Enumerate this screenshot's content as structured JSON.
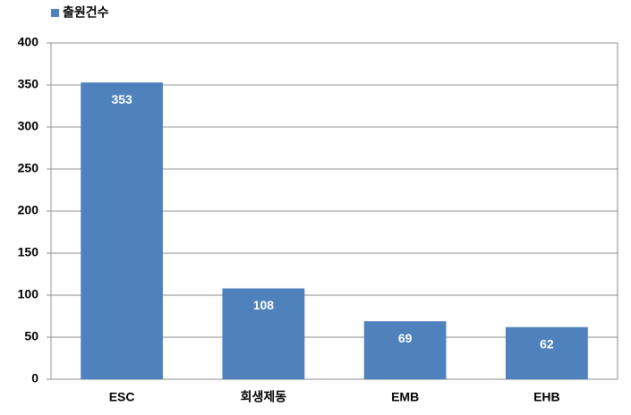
{
  "chart_data": {
    "type": "bar",
    "categories": [
      "ESC",
      "회생제동",
      "EMB",
      "EHB"
    ],
    "series": [
      {
        "name": "출원건수",
        "color": "#4f81bd",
        "values": [
          353,
          108,
          69,
          62
        ]
      }
    ],
    "ylim": [
      0,
      400
    ],
    "yticks": [
      0,
      50,
      100,
      150,
      200,
      250,
      300,
      350,
      400
    ],
    "grid": true,
    "legend": "top-left",
    "data_labels": true
  }
}
